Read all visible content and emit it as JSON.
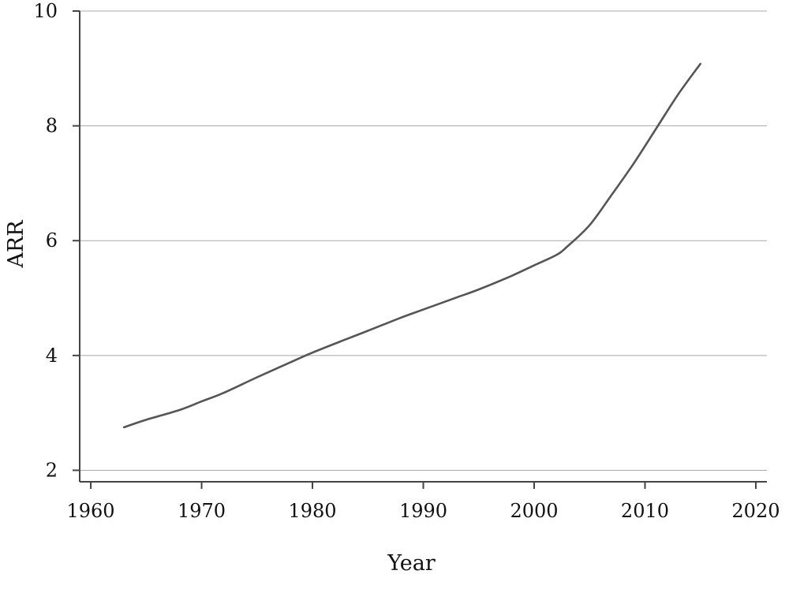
{
  "chart_data": {
    "type": "line",
    "title": "",
    "xlabel": "Year",
    "ylabel": "ARR",
    "xlim": [
      1959,
      2021
    ],
    "ylim": [
      1.8,
      10
    ],
    "x_ticks": [
      "1960",
      "1970",
      "1980",
      "1990",
      "2000",
      "2010",
      "2020"
    ],
    "y_ticks": [
      "2",
      "4",
      "6",
      "8",
      "10"
    ],
    "grid": "horizontal",
    "colors": {
      "line": "#555555",
      "grid": "#a8a8a8",
      "axis": "#444444"
    },
    "series": [
      {
        "x": [
          1963,
          1965,
          1968,
          1970,
          1972,
          1975,
          1978,
          1980,
          1983,
          1985,
          1988,
          1990,
          1993,
          1995,
          1998,
          2000,
          2002,
          2003,
          2005,
          2007,
          2009,
          2011,
          2013,
          2015
        ],
        "y": [
          2.75,
          2.88,
          3.05,
          3.2,
          3.35,
          3.62,
          3.88,
          4.05,
          4.28,
          4.43,
          4.66,
          4.8,
          5.01,
          5.15,
          5.39,
          5.57,
          5.75,
          5.9,
          6.27,
          6.8,
          7.35,
          7.95,
          8.55,
          9.08
        ]
      }
    ]
  }
}
